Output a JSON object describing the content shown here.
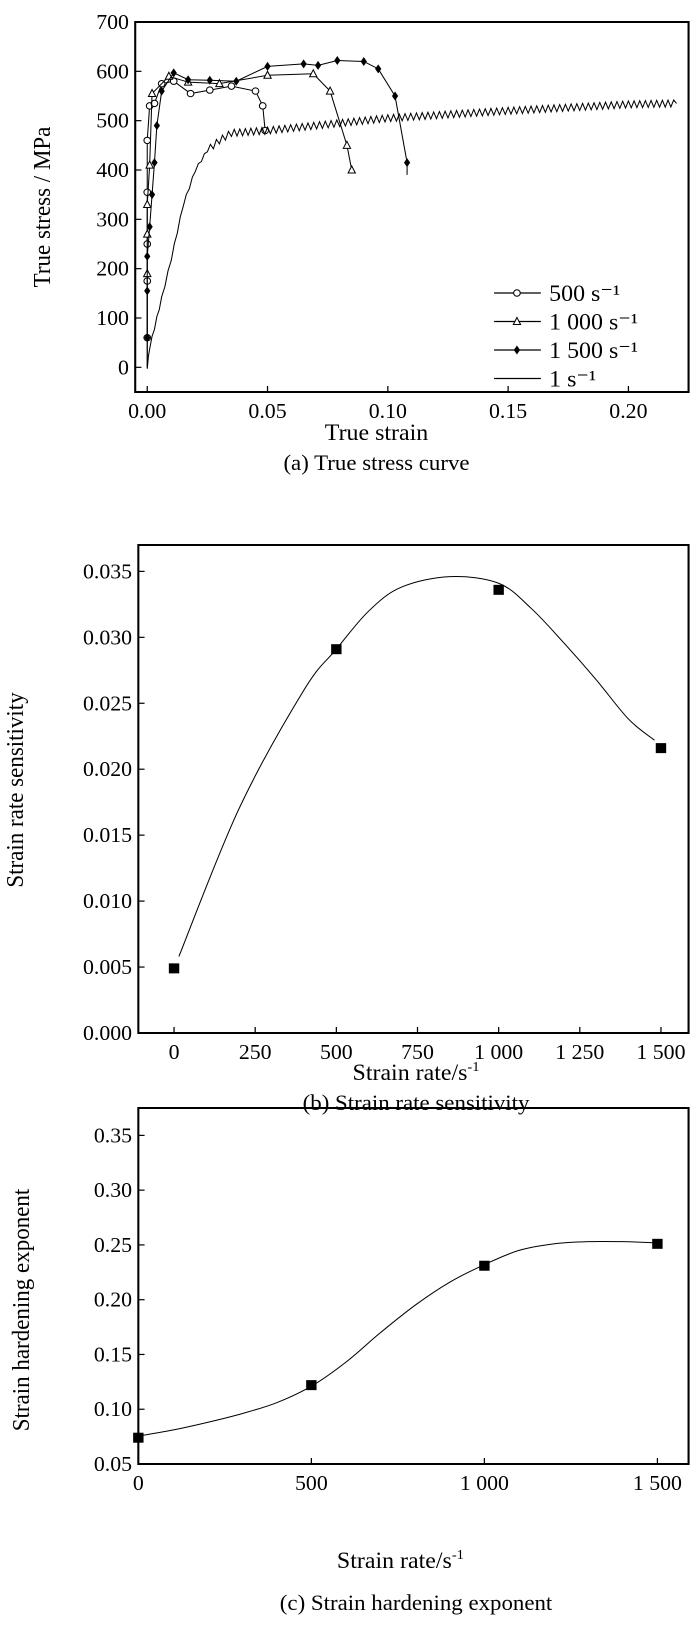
{
  "chart_data": [
    {
      "type": "line",
      "caption": "(a) True stress curve",
      "xlabel": "True strain",
      "ylabel": "True stress / MPa",
      "xlim": [
        -0.005,
        0.225
      ],
      "ylim": [
        -50,
        700
      ],
      "xticks": [
        "0.00",
        "0.05",
        "0.10",
        "0.15",
        "0.20"
      ],
      "xtick_values": [
        0,
        0.05,
        0.1,
        0.15,
        0.2
      ],
      "yticks": [
        "0",
        "100",
        "200",
        "300",
        "400",
        "500",
        "600",
        "700"
      ],
      "ytick_values": [
        0,
        100,
        200,
        300,
        400,
        500,
        600,
        700
      ],
      "grid": false,
      "legend_position": "right",
      "series": [
        {
          "name": "500 s⁻¹",
          "marker": "open-circle",
          "x": [
            0,
            0,
            0,
            0,
            0,
            0,
            0.001,
            0.003,
            0.006,
            0.011,
            0.018,
            0.026,
            0.035,
            0.045,
            0.048,
            0.049
          ],
          "y": [
            0,
            60,
            175,
            250,
            355,
            460,
            530,
            535,
            575,
            580,
            555,
            562,
            570,
            560,
            530,
            480
          ]
        },
        {
          "name": "1 000 s⁻¹",
          "marker": "open-triangle",
          "x": [
            0,
            0,
            0,
            0,
            0.001,
            0.002,
            0.009,
            0.017,
            0.03,
            0.05,
            0.069,
            0.076,
            0.083,
            0.085
          ],
          "y": [
            0,
            190,
            270,
            330,
            410,
            555,
            590,
            578,
            575,
            592,
            595,
            560,
            450,
            400
          ]
        },
        {
          "name": "1 500 s⁻¹",
          "marker": "filled-diamond",
          "x": [
            0,
            0,
            0,
            0.001,
            0.002,
            0.003,
            0.004,
            0.006,
            0.011,
            0.017,
            0.026,
            0.037,
            0.05,
            0.065,
            0.071,
            0.079,
            0.09,
            0.096,
            0.103,
            0.108,
            0.108
          ],
          "y": [
            60,
            155,
            225,
            285,
            350,
            415,
            490,
            560,
            597,
            583,
            582,
            580,
            610,
            615,
            612,
            622,
            620,
            605,
            550,
            415,
            390
          ]
        },
        {
          "name": "1 s⁻¹",
          "marker": "none",
          "x": [
            0,
            0.001,
            0.003,
            0.006,
            0.01,
            0.015,
            0.02,
            0.025,
            0.03,
            0.035,
            0.05,
            0.08,
            0.1,
            0.15,
            0.2,
            0.22
          ],
          "y": [
            0,
            40,
            80,
            140,
            220,
            330,
            400,
            440,
            460,
            475,
            480,
            495,
            505,
            520,
            533,
            535
          ]
        }
      ]
    },
    {
      "type": "line",
      "caption": "(b) Strain rate sensitivity",
      "xlabel": "Strain rate/s",
      "xlabel_sup": "-1",
      "ylabel": "Strain rate sensitivity",
      "xlim": [
        -110,
        1585
      ],
      "ylim": [
        0,
        0.037
      ],
      "xticks": [
        "0",
        "250",
        "500",
        "750",
        "1 000",
        "1 250",
        "1 500"
      ],
      "xtick_values": [
        0,
        250,
        500,
        750,
        1000,
        1250,
        1500
      ],
      "yticks": [
        "0.000",
        "0.005",
        "0.010",
        "0.015",
        "0.020",
        "0.025",
        "0.030",
        "0.035"
      ],
      "ytick_values": [
        0,
        0.005,
        0.01,
        0.015,
        0.02,
        0.025,
        0.03,
        0.035
      ],
      "grid": false,
      "points": {
        "x": [
          0,
          500,
          1000,
          1500
        ],
        "y": [
          0.0049,
          0.0291,
          0.0336,
          0.0216
        ]
      },
      "fit": {
        "x": [
          15,
          200,
          400,
          500,
          600,
          700,
          850,
          1000,
          1100,
          1200,
          1300,
          1400,
          1480
        ],
        "y": [
          0.0058,
          0.017,
          0.026,
          0.0291,
          0.032,
          0.0338,
          0.0346,
          0.0341,
          0.0322,
          0.0296,
          0.0268,
          0.0238,
          0.0222
        ]
      }
    },
    {
      "type": "line",
      "caption": "(c) Strain hardening exponent",
      "xlabel": "Strain rate/s",
      "xlabel_sup": "-1",
      "ylabel": "Strain hardening exponent",
      "xlim": [
        0,
        1590
      ],
      "ylim": [
        0.05,
        0.375
      ],
      "xticks": [
        "0",
        "500",
        "1 000",
        "1 500"
      ],
      "xtick_values": [
        0,
        500,
        1000,
        1500
      ],
      "yticks": [
        "0.05",
        "0.10",
        "0.15",
        "0.20",
        "0.25",
        "0.30",
        "0.35"
      ],
      "ytick_values": [
        0.05,
        0.1,
        0.15,
        0.2,
        0.25,
        0.3,
        0.35
      ],
      "grid": false,
      "points": {
        "x": [
          0,
          500,
          1000,
          1500
        ],
        "y": [
          0.074,
          0.122,
          0.231,
          0.251
        ]
      },
      "fit": {
        "x": [
          10,
          100,
          200,
          300,
          400,
          500,
          600,
          700,
          800,
          900,
          1000,
          1100,
          1200,
          1300,
          1400,
          1490
        ],
        "y": [
          0.076,
          0.081,
          0.088,
          0.096,
          0.106,
          0.121,
          0.143,
          0.17,
          0.195,
          0.216,
          0.232,
          0.245,
          0.251,
          0.253,
          0.253,
          0.252
        ]
      }
    }
  ]
}
